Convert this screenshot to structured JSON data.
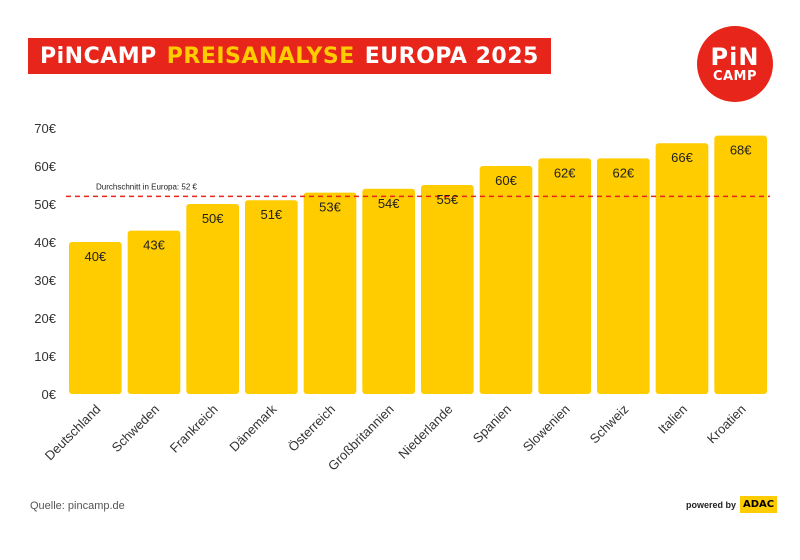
{
  "header": {
    "title_part1": "PiNCAMP",
    "title_part2": "PREISANALYSE",
    "title_part3": "EUROPA 2025"
  },
  "logo": {
    "line1": "PiN",
    "line2": "CAMP"
  },
  "footer": {
    "source": "Quelle: pincamp.de",
    "powered_by": "powered by",
    "adac": "ADAC"
  },
  "colors": {
    "brand_red": "#e8251b",
    "bar": "#ffcc00",
    "average_line": "#e8251b"
  },
  "chart_data": {
    "type": "bar",
    "categories": [
      "Deutschland",
      "Schweden",
      "Frankreich",
      "Dänemark",
      "Österreich",
      "Großbritannien",
      "Niederlande",
      "Spanien",
      "Slowenien",
      "Schweiz",
      "Italien",
      "Kroatien"
    ],
    "values": [
      40,
      43,
      50,
      51,
      53,
      54,
      55,
      60,
      62,
      62,
      66,
      68
    ],
    "value_labels": [
      "40€",
      "43€",
      "50€",
      "51€",
      "53€",
      "54€",
      "55€",
      "60€",
      "62€",
      "62€",
      "66€",
      "68€"
    ],
    "ylim": [
      0,
      70
    ],
    "yticks": [
      0,
      10,
      20,
      30,
      40,
      50,
      60,
      70
    ],
    "ytick_labels": [
      "0€",
      "10€",
      "20€",
      "30€",
      "40€",
      "50€",
      "60€",
      "70€"
    ],
    "average": {
      "value": 52,
      "label": "Durchschnitt in Europa: 52 €"
    },
    "grid": false
  }
}
